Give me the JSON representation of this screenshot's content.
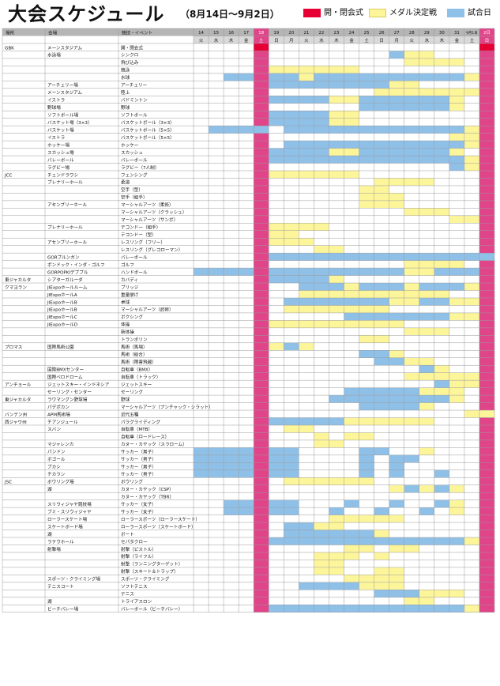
{
  "title": "大会スケジュール",
  "subtitle": "（8月14日〜9月2日）",
  "legend": [
    {
      "label": "開・閉会式",
      "color": "#e60033"
    },
    {
      "label": "メダル決定戦",
      "color": "#fdf59a"
    },
    {
      "label": "試合日",
      "color": "#8fc0e8"
    }
  ],
  "colors": {
    "header_bg": "#b5b5b5",
    "weekday_bg": "#d9d9d9",
    "highlight_column": "#e0458a",
    "ceremony": "#e60033",
    "medal": "#fdf59a",
    "match": "#8fc0e8",
    "grid": "#9a9a9a"
  },
  "header": {
    "venue": "場所",
    "facility": "会場",
    "event": "競技・イベント"
  },
  "dates": [
    "14",
    "15",
    "16",
    "17",
    "18",
    "19",
    "20",
    "21",
    "22",
    "23",
    "24",
    "25",
    "26",
    "27",
    "28",
    "29",
    "30",
    "31",
    "9月1日",
    "2日"
  ],
  "weekdays": [
    "火",
    "水",
    "木",
    "金",
    "土",
    "日",
    "月",
    "火",
    "水",
    "木",
    "金",
    "土",
    "日",
    "月",
    "火",
    "水",
    "木",
    "金",
    "土",
    "日"
  ],
  "highlight_dates": [
    "18",
    "2日"
  ],
  "rows": [
    {
      "area": "GBK",
      "venue": "メーンスタジアム",
      "event": "開・閉会式",
      "cells": "....C..............C"
    },
    {
      "area": "",
      "venue": "水泳場",
      "event": "シンクロ",
      "cells": ".............BYY...."
    },
    {
      "area": "",
      "venue": "",
      "event": "飛び込み",
      "cells": "..............YYYY.."
    },
    {
      "area": "",
      "venue": "",
      "event": "競泳",
      "cells": ".....YYYYYY........."
    },
    {
      "area": "",
      "venue": "",
      "event": "水球",
      "cells": "..BB.BBYBBBBBBBBBBY."
    },
    {
      "area": "",
      "venue": "アーチェリー場",
      "event": "アーチェリー",
      "cells": ".....BBBBBBBBYY....."
    },
    {
      "area": "",
      "venue": "メーンスタジアム",
      "event": "陸上",
      "cells": "............YYYYYYY."
    },
    {
      "area": "",
      "venue": "イストラ",
      "event": "バドミントン",
      "cells": ".....BBBBYYBBBBBBY.."
    },
    {
      "area": "",
      "venue": "野球場",
      "event": "野球",
      "cells": "...........BBBBBBY.."
    },
    {
      "area": "",
      "venue": "ソフトボール場",
      "event": "ソフトボール",
      "cells": ".....BBBBYY........."
    },
    {
      "area": "",
      "venue": "バスケット場（3×3）",
      "event": "バスケットボール（3×3）",
      "cells": ".....BBBBYY........."
    },
    {
      "area": "",
      "venue": "バスケット場",
      "event": "バスケットボール（5×5）",
      "cells": ".BBBB.BBBBBBBBBBBBY."
    },
    {
      "area": "",
      "venue": "イストラ",
      "event": "バスケットボール（5×5）",
      "cells": ".................YY."
    },
    {
      "area": "",
      "venue": "ホッケー場",
      "event": "ホッケー",
      "cells": "......BBBBBBBBBBBBY."
    },
    {
      "area": "",
      "venue": "スカッシュ場",
      "event": "スカッシュ",
      "cells": ".....BBBBYYBBBBBBY.."
    },
    {
      "area": "",
      "venue": "バレーボール",
      "event": "バレーボール",
      "cells": ".....BBBBBBBBBBBBBY."
    },
    {
      "area": "",
      "venue": "ラグビー場",
      "event": "ラグビー（7人制）",
      "cells": ".................BY."
    },
    {
      "area": "JCC",
      "venue": "チェンドラワシ",
      "event": "フェンシング",
      "cells": ".....YYYYYY........."
    },
    {
      "area": "",
      "venue": "プレナリーホール",
      "event": "柔道",
      "cells": "............YYYY...."
    },
    {
      "area": "",
      "venue": "",
      "event": "空手（型）",
      "cells": "...........YY......."
    },
    {
      "area": "",
      "venue": "",
      "event": "空手（組手）",
      "cells": "...........YYY......"
    },
    {
      "area": "",
      "venue": "アセンブリーホール",
      "event": "マーシャルアーツ（柔術）",
      "cells": "...........YYY......"
    },
    {
      "area": "",
      "venue": "",
      "event": "マーシャルアーツ（クラッシュ）",
      "cells": "..............YYY..."
    },
    {
      "area": "",
      "venue": "",
      "event": "マーシャルアーツ（サンボ）",
      "cells": ".................YY."
    },
    {
      "area": "",
      "venue": "プレナリーホール",
      "event": "テコンドー（組手）",
      "cells": ".....YYYY..........."
    },
    {
      "area": "",
      "venue": "",
      "event": "テコンドー（型）",
      "cells": ".....YY............."
    },
    {
      "area": "",
      "venue": "アセンブリーホール",
      "event": "レスリング（フリー）",
      "cells": ".....YYY............"
    },
    {
      "area": "",
      "venue": "",
      "event": "レスリング（グレコローマン）",
      "cells": "........YY.........."
    },
    {
      "area": "",
      "venue": "GORブルンガン",
      "event": "バレーボール",
      "cells": ".....BBBBBBBBBBBBBBB"
    },
    {
      "area": "",
      "venue": "ポンドック・インダ・ゴルフ",
      "event": "ゴルフ",
      "cells": "..............YYYY.."
    },
    {
      "area": "",
      "venue": "GORPOPKIデブブル",
      "event": "ハンドボール",
      "cells": "BBBB.BBBBBBBBBYYBBB."
    },
    {
      "area": "東ジャカルタ",
      "venue": "シアターガルーダ",
      "event": "カバディ",
      "cells": ".....BBBBY.........."
    },
    {
      "area": "クマヨラン",
      "venue": "JIExpoホールルーム",
      "event": "ブリッジ",
      "cells": ".......BBBYBBBYBBBY."
    },
    {
      "area": "",
      "venue": "JIExpoホールA",
      "event": "重量挙げ",
      "cells": ".......YYYYYYYYYY..."
    },
    {
      "area": "",
      "venue": "JIExpoホールB",
      "event": "卓球",
      "cells": "......BBBBBBBYYBBYY."
    },
    {
      "area": "",
      "venue": "JIExpoホールB",
      "event": "マーシャルアーツ（武術）",
      "cells": "......YYYYYYY......."
    },
    {
      "area": "",
      "venue": "JIExpoホールC",
      "event": "ボクシング",
      "cells": "..........BBBBBBBYY."
    },
    {
      "area": "",
      "venue": "JIExpoホールD",
      "event": "体操",
      "cells": ".....YYYYYYYYY......"
    },
    {
      "area": "",
      "venue": "",
      "event": "新体操",
      "cells": "..............YYY..."
    },
    {
      "area": "",
      "venue": "",
      "event": "トランポリン",
      "cells": "...........YY......."
    },
    {
      "area": "プロマス",
      "venue": "国際馬術公園",
      "event": "馬術（馬場）",
      "cells": ".....YBY............"
    },
    {
      "area": "",
      "venue": "",
      "event": "馬術（総合）",
      "cells": "...........BBY......"
    },
    {
      "area": "",
      "venue": "",
      "event": "馬術（障害飛越）",
      "cells": "............BBYY...."
    },
    {
      "area": "",
      "venue": "国際BMXセンター",
      "event": "自転車（BMX）",
      "cells": "...............BY..."
    },
    {
      "area": "",
      "venue": "国際ベロドローム",
      "event": "自転車（トラック）",
      "cells": "..............YYYYY."
    },
    {
      "area": "アンチョール",
      "venue": "ジェットスキー・インドネシア",
      "event": "ジェットスキー",
      "cells": "................BYY."
    },
    {
      "area": "",
      "venue": "セーリング・センター",
      "event": "セーリング",
      "cells": "..........BBBBBYYY.."
    },
    {
      "area": "東ジャカルタ",
      "venue": "ラワマングン野球場",
      "event": "野球",
      "cells": ".........BBBBBBBBY.."
    },
    {
      "area": "",
      "venue": "パデポカン",
      "event": "マーシャルアーツ（プンチャック・シラット）",
      "cells": "...........BBBBY...."
    },
    {
      "area": "バンテン州",
      "venue": "APM馬術場",
      "event": "近代五種",
      "cells": "..................YY"
    },
    {
      "area": "西ジャワ州",
      "venue": "チアンジュール",
      "event": "パラグライディング",
      "cells": ".....BBBBBYYYYYY...."
    },
    {
      "area": "",
      "venue": "スバン",
      "event": "自転車（MTB）",
      "cells": "......YY............"
    },
    {
      "area": "",
      "venue": "",
      "event": "自転車（ロードレース）",
      "cells": "........Y.YY........"
    },
    {
      "area": "",
      "venue": "マジャレンカ",
      "event": "カヌー・カヤック（スラローム）",
      "cells": "........YY.........."
    },
    {
      "area": "",
      "venue": "パンドン",
      "event": "サッカー（男子）",
      "cells": "BBBB.BB....BB..Y...."
    },
    {
      "area": "",
      "venue": "ボゴール",
      "event": "サッカー（男子）",
      "cells": "BBBB.BB....B.BB....."
    },
    {
      "area": "",
      "venue": "ブカシ",
      "event": "サッカー（男子）",
      "cells": "BBBB.BB....B.B......"
    },
    {
      "area": "",
      "venue": "チカラン",
      "event": "サッカー（男子）",
      "cells": "BBBB.BB....B.B..B..."
    },
    {
      "area": "JSC",
      "venue": "ボウリング場",
      "event": "ボウリング",
      "cells": "......YYYYYY........"
    },
    {
      "area": "",
      "venue": "湖",
      "event": "カヌー・カヤック（CSP）",
      "cells": ".............YBYBY.."
    },
    {
      "area": "",
      "venue": "",
      "event": "カヌー・カヤック（TBR）",
      "cells": "...................."
    },
    {
      "area": "",
      "venue": "スリウィジャヤ競技場",
      "event": "サッカー（女子）",
      "cells": "..BB.BB...B..B..BY.."
    },
    {
      "area": "",
      "venue": "ブミ・スリウィジャヤ",
      "event": "サッカー（女子）",
      "cells": "..BB.BB..B..B..B.Y.."
    },
    {
      "area": "",
      "venue": "ローラースケート場",
      "event": "ローラースポーツ（ローラースケート）",
      "cells": ".........YYYYY......"
    },
    {
      "area": "",
      "venue": "スケートボード場",
      "event": "ローラースポーツ（スケートボード）",
      "cells": "......BBYY.........."
    },
    {
      "area": "",
      "venue": "湖",
      "event": "ボート",
      "cells": "......BBBBBBY......."
    },
    {
      "area": "",
      "venue": "ラナウホール",
      "event": "セパタクロー",
      "cells": ".....BBBBBBBBBBBBBY."
    },
    {
      "area": "",
      "venue": "射撃場",
      "event": "射撃（ピストル）",
      "cells": "..........YY.YY....."
    },
    {
      "area": "",
      "venue": "",
      "event": "射撃（ライフル）",
      "cells": "........YYY.Y......."
    },
    {
      "area": "",
      "venue": "",
      "event": "射撃（ランニングターゲット）",
      "cells": "........YY.........."
    },
    {
      "area": "",
      "venue": "",
      "event": "射撃（スキート＆トラップ）",
      "cells": "........YY..YY......"
    },
    {
      "area": "",
      "venue": "スポーツ・クライミング場",
      "event": "スポーツ・クライミング",
      "cells": "..........YYYY......"
    },
    {
      "area": "",
      "venue": "テニスコート",
      "event": "ソフトテニス",
      "cells": ".......BBBBYYY......"
    },
    {
      "area": "",
      "venue": "",
      "event": "テニス",
      "cells": "............BBBYYY.."
    },
    {
      "area": "",
      "venue": "湖",
      "event": "トライアスロン",
      "cells": "..............YY...."
    },
    {
      "area": "",
      "venue": "ビーチバレー場",
      "event": "バレーボール（ビーチバレー）",
      "cells": ".....BBBBBBBBBBBBBY."
    }
  ]
}
